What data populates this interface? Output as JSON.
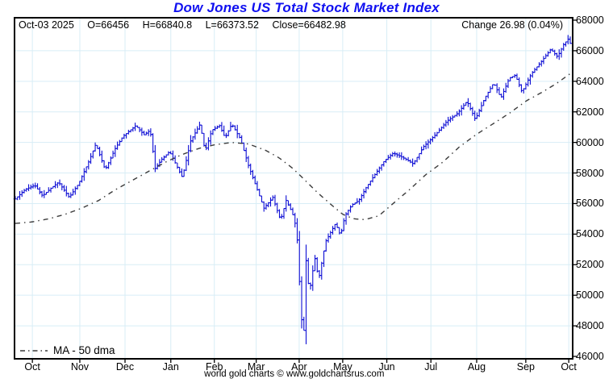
{
  "title": "Dow Jones US Total Stock Market Index",
  "info_bar": {
    "date": "Oct-03  2025",
    "open": "O=66456",
    "high": "H=66840.8",
    "low": "L=66373.52",
    "close": "Close=66482.98",
    "change": "Change 26.98 (0.04%)"
  },
  "legend": {
    "ma_label": "MA - 50 dma"
  },
  "footer": "world gold charts © www.goldchartsrus.com",
  "colors": {
    "title": "#1010f0",
    "bar": "#0d0dd4",
    "ma_line": "#3c3c3c",
    "grid": "#d8edf6",
    "axis": "#000000",
    "text": "#000000",
    "background": "#ffffff"
  },
  "chart_data": {
    "type": "ohlc",
    "title": "Dow Jones US Total Stock Market Index",
    "subtitle": "1 year daily bars with 50-day moving average",
    "legend_entries": [
      "MA - 50 dma"
    ],
    "last_bar": {
      "date": "Oct-03 2025",
      "open": 66456,
      "high": 66840.8,
      "low": 66373.52,
      "close": 66482.98,
      "change": 26.98,
      "change_pct": 0.04
    },
    "y_axis": {
      "min": 46000,
      "max": 68000,
      "tick_step": 2000,
      "tick_labels": [
        "68000",
        "66000",
        "64000",
        "62000",
        "60000",
        "58000",
        "56000",
        "54000",
        "52000",
        "50000",
        "48000",
        "46000"
      ],
      "side": "right",
      "grid": true
    },
    "x_axis": {
      "grid": true,
      "months": [
        {
          "label": "Oct",
          "t": 0.032
        },
        {
          "label": "Nov",
          "t": 0.117
        },
        {
          "label": "Dec",
          "t": 0.198
        },
        {
          "label": "Jan",
          "t": 0.28
        },
        {
          "label": "Feb",
          "t": 0.358
        },
        {
          "label": "Mar",
          "t": 0.433
        },
        {
          "label": "Apr",
          "t": 0.51
        },
        {
          "label": "May",
          "t": 0.588
        },
        {
          "label": "Jun",
          "t": 0.667
        },
        {
          "label": "Jul",
          "t": 0.746
        },
        {
          "label": "Aug",
          "t": 0.828
        },
        {
          "label": "Sep",
          "t": 0.916
        },
        {
          "label": "Oct",
          "t": 0.993
        }
      ]
    },
    "bars_count": 251,
    "price_close_keypoints": [
      [
        0.0,
        56300
      ],
      [
        0.017,
        56900
      ],
      [
        0.035,
        57200
      ],
      [
        0.049,
        56500
      ],
      [
        0.064,
        57000
      ],
      [
        0.078,
        57400
      ],
      [
        0.097,
        56400
      ],
      [
        0.114,
        57300
      ],
      [
        0.133,
        58800
      ],
      [
        0.145,
        59900
      ],
      [
        0.162,
        58200
      ],
      [
        0.18,
        59600
      ],
      [
        0.194,
        60400
      ],
      [
        0.217,
        61100
      ],
      [
        0.232,
        60500
      ],
      [
        0.243,
        60800
      ],
      [
        0.252,
        58300
      ],
      [
        0.264,
        58900
      ],
      [
        0.278,
        59400
      ],
      [
        0.293,
        58300
      ],
      [
        0.301,
        57700
      ],
      [
        0.316,
        60100
      ],
      [
        0.333,
        61200
      ],
      [
        0.342,
        59400
      ],
      [
        0.354,
        60800
      ],
      [
        0.368,
        61100
      ],
      [
        0.378,
        60300
      ],
      [
        0.39,
        61200
      ],
      [
        0.406,
        60200
      ],
      [
        0.42,
        58500
      ],
      [
        0.435,
        57000
      ],
      [
        0.448,
        55700
      ],
      [
        0.464,
        56400
      ],
      [
        0.478,
        54900
      ],
      [
        0.488,
        56200
      ],
      [
        0.499,
        55400
      ],
      [
        0.507,
        54300
      ],
      [
        0.512,
        50900
      ],
      [
        0.516,
        48400
      ],
      [
        0.52,
        47700
      ],
      [
        0.525,
        53400
      ],
      [
        0.529,
        49900
      ],
      [
        0.535,
        51400
      ],
      [
        0.541,
        52600
      ],
      [
        0.546,
        50900
      ],
      [
        0.552,
        52100
      ],
      [
        0.559,
        53500
      ],
      [
        0.568,
        54100
      ],
      [
        0.577,
        54700
      ],
      [
        0.586,
        53900
      ],
      [
        0.594,
        55200
      ],
      [
        0.606,
        55900
      ],
      [
        0.619,
        56200
      ],
      [
        0.633,
        57100
      ],
      [
        0.648,
        57900
      ],
      [
        0.665,
        58800
      ],
      [
        0.681,
        59300
      ],
      [
        0.699,
        59000
      ],
      [
        0.717,
        58600
      ],
      [
        0.735,
        59700
      ],
      [
        0.757,
        60500
      ],
      [
        0.778,
        61400
      ],
      [
        0.797,
        61900
      ],
      [
        0.814,
        62700
      ],
      [
        0.829,
        61500
      ],
      [
        0.846,
        62900
      ],
      [
        0.862,
        63900
      ],
      [
        0.875,
        62900
      ],
      [
        0.89,
        64200
      ],
      [
        0.901,
        64400
      ],
      [
        0.913,
        63300
      ],
      [
        0.93,
        64500
      ],
      [
        0.948,
        65300
      ],
      [
        0.965,
        66100
      ],
      [
        0.977,
        65600
      ],
      [
        0.988,
        66400
      ],
      [
        0.997,
        66800
      ],
      [
        1.0,
        66483
      ]
    ],
    "ma50_keypoints": [
      [
        0.0,
        54700
      ],
      [
        0.03,
        54800
      ],
      [
        0.06,
        55000
      ],
      [
        0.09,
        55300
      ],
      [
        0.12,
        55700
      ],
      [
        0.15,
        56200
      ],
      [
        0.18,
        56900
      ],
      [
        0.21,
        57500
      ],
      [
        0.24,
        58100
      ],
      [
        0.27,
        58700
      ],
      [
        0.3,
        59200
      ],
      [
        0.33,
        59600
      ],
      [
        0.36,
        59850
      ],
      [
        0.39,
        60000
      ],
      [
        0.42,
        59900
      ],
      [
        0.45,
        59500
      ],
      [
        0.475,
        59000
      ],
      [
        0.5,
        58300
      ],
      [
        0.52,
        57600
      ],
      [
        0.545,
        56700
      ],
      [
        0.57,
        55900
      ],
      [
        0.59,
        55300
      ],
      [
        0.61,
        55000
      ],
      [
        0.63,
        54950
      ],
      [
        0.655,
        55200
      ],
      [
        0.684,
        56100
      ],
      [
        0.71,
        56900
      ],
      [
        0.74,
        57900
      ],
      [
        0.77,
        58700
      ],
      [
        0.8,
        59700
      ],
      [
        0.83,
        60500
      ],
      [
        0.86,
        61200
      ],
      [
        0.89,
        61900
      ],
      [
        0.92,
        62700
      ],
      [
        0.95,
        63300
      ],
      [
        0.975,
        63850
      ],
      [
        1.0,
        64500
      ]
    ]
  }
}
